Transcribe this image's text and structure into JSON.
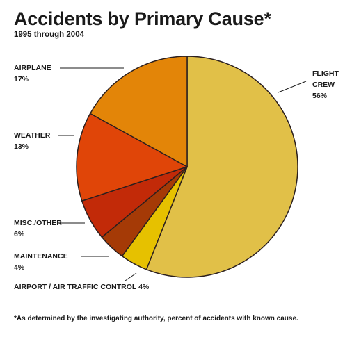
{
  "chart_data": {
    "type": "pie",
    "title": "Accidents by Primary Cause*",
    "subtitle": "1995 through 2004",
    "footnote": "*As determined by the investigating authority, percent of accidents with known cause.",
    "slices": [
      {
        "label_lines": [
          "FLIGHT",
          "CREW"
        ],
        "value": 56,
        "value_text": "56%",
        "color": "#e1c048"
      },
      {
        "label_lines": [
          "AIRPORT / AIR TRAFFIC CONTROL 4%"
        ],
        "value": 4,
        "value_text": "",
        "color": "#e6c100"
      },
      {
        "label_lines": [
          "MAINTENANCE"
        ],
        "value": 4,
        "value_text": "4%",
        "color": "#a53a06"
      },
      {
        "label_lines": [
          "MISC./OTHER"
        ],
        "value": 6,
        "value_text": "6%",
        "color": "#c22a08"
      },
      {
        "label_lines": [
          "WEATHER"
        ],
        "value": 13,
        "value_text": "13%",
        "color": "#e04508"
      },
      {
        "label_lines": [
          "AIRPLANE"
        ],
        "value": 17,
        "value_text": "17%",
        "color": "#e38508"
      }
    ]
  }
}
